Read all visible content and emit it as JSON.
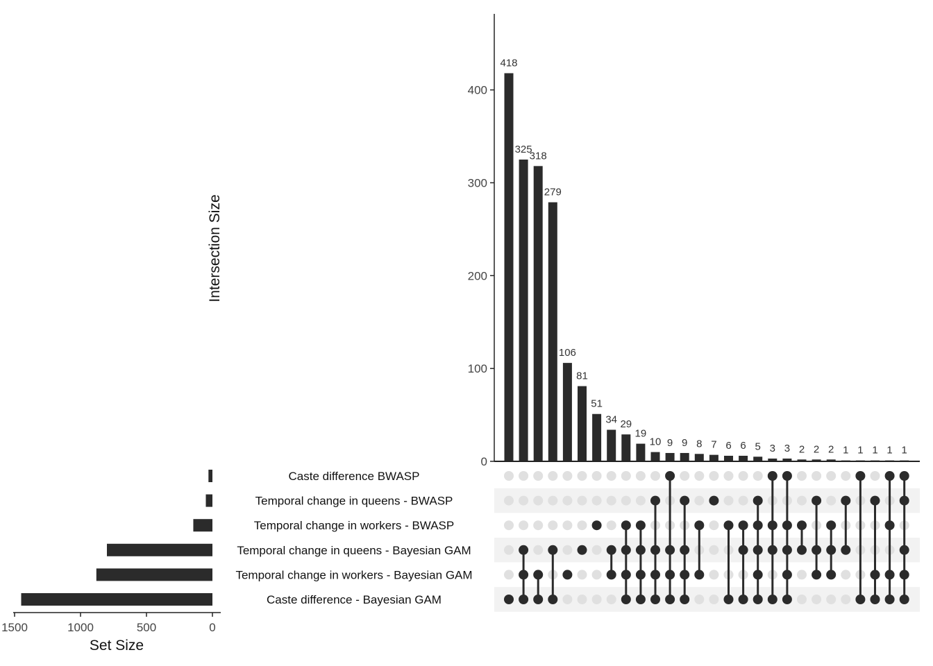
{
  "chart_data": {
    "type": "bar",
    "subtype": "upset",
    "title": "",
    "ylabel": "Intersection Size",
    "xlabel_sets": "Set Size",
    "ylim": [
      0,
      480
    ],
    "yticks": [
      0,
      100,
      200,
      300,
      400
    ],
    "set_size_ticks": [
      1500,
      1000,
      500,
      0
    ],
    "set_size_xlim": [
      1500,
      0
    ],
    "colors": {
      "bar": "#2b2b2b",
      "dot_on": "#2b2b2b",
      "dot_off": "#e0e0e0",
      "stripe": "#f2f2f2"
    },
    "sets": [
      {
        "name": "Caste difference BWASP",
        "size": 30
      },
      {
        "name": "Temporal change in queens - BWASP",
        "size": 50
      },
      {
        "name": "Temporal change in workers - BWASP",
        "size": 145
      },
      {
        "name": "Temporal change in queens - Bayesian GAM",
        "size": 800
      },
      {
        "name": "Temporal change in workers - Bayesian GAM",
        "size": 880
      },
      {
        "name": "Caste difference - Bayesian GAM",
        "size": 1450
      }
    ],
    "intersections": [
      {
        "value": 418,
        "sets": [
          5
        ]
      },
      {
        "value": 325,
        "sets": [
          3,
          4,
          5
        ]
      },
      {
        "value": 318,
        "sets": [
          4,
          5
        ]
      },
      {
        "value": 279,
        "sets": [
          3,
          5
        ]
      },
      {
        "value": 106,
        "sets": [
          4
        ]
      },
      {
        "value": 81,
        "sets": [
          3
        ]
      },
      {
        "value": 51,
        "sets": [
          2
        ]
      },
      {
        "value": 34,
        "sets": [
          3,
          4
        ]
      },
      {
        "value": 29,
        "sets": [
          2,
          3,
          4,
          5
        ]
      },
      {
        "value": 19,
        "sets": [
          2,
          3,
          4,
          5
        ]
      },
      {
        "value": 10,
        "sets": [
          1,
          3,
          4,
          5
        ]
      },
      {
        "value": 9,
        "sets": [
          0,
          3,
          4,
          5
        ]
      },
      {
        "value": 9,
        "sets": [
          1,
          3,
          4,
          5
        ]
      },
      {
        "value": 8,
        "sets": [
          2,
          4
        ]
      },
      {
        "value": 7,
        "sets": [
          1
        ]
      },
      {
        "value": 6,
        "sets": [
          2,
          5
        ]
      },
      {
        "value": 6,
        "sets": [
          2,
          3,
          5
        ]
      },
      {
        "value": 5,
        "sets": [
          1,
          2,
          3,
          4,
          5
        ]
      },
      {
        "value": 3,
        "sets": [
          0,
          2,
          3,
          5
        ]
      },
      {
        "value": 3,
        "sets": [
          0,
          2,
          3,
          4,
          5
        ]
      },
      {
        "value": 2,
        "sets": [
          2,
          3
        ]
      },
      {
        "value": 2,
        "sets": [
          1,
          3,
          4
        ]
      },
      {
        "value": 2,
        "sets": [
          2,
          3,
          4
        ]
      },
      {
        "value": 1,
        "sets": [
          1,
          3
        ]
      },
      {
        "value": 1,
        "sets": [
          0,
          5
        ]
      },
      {
        "value": 1,
        "sets": [
          1,
          4,
          5
        ]
      },
      {
        "value": 1,
        "sets": [
          0,
          2,
          4,
          5
        ]
      },
      {
        "value": 1,
        "sets": [
          0,
          1,
          3,
          4,
          5
        ]
      }
    ]
  }
}
